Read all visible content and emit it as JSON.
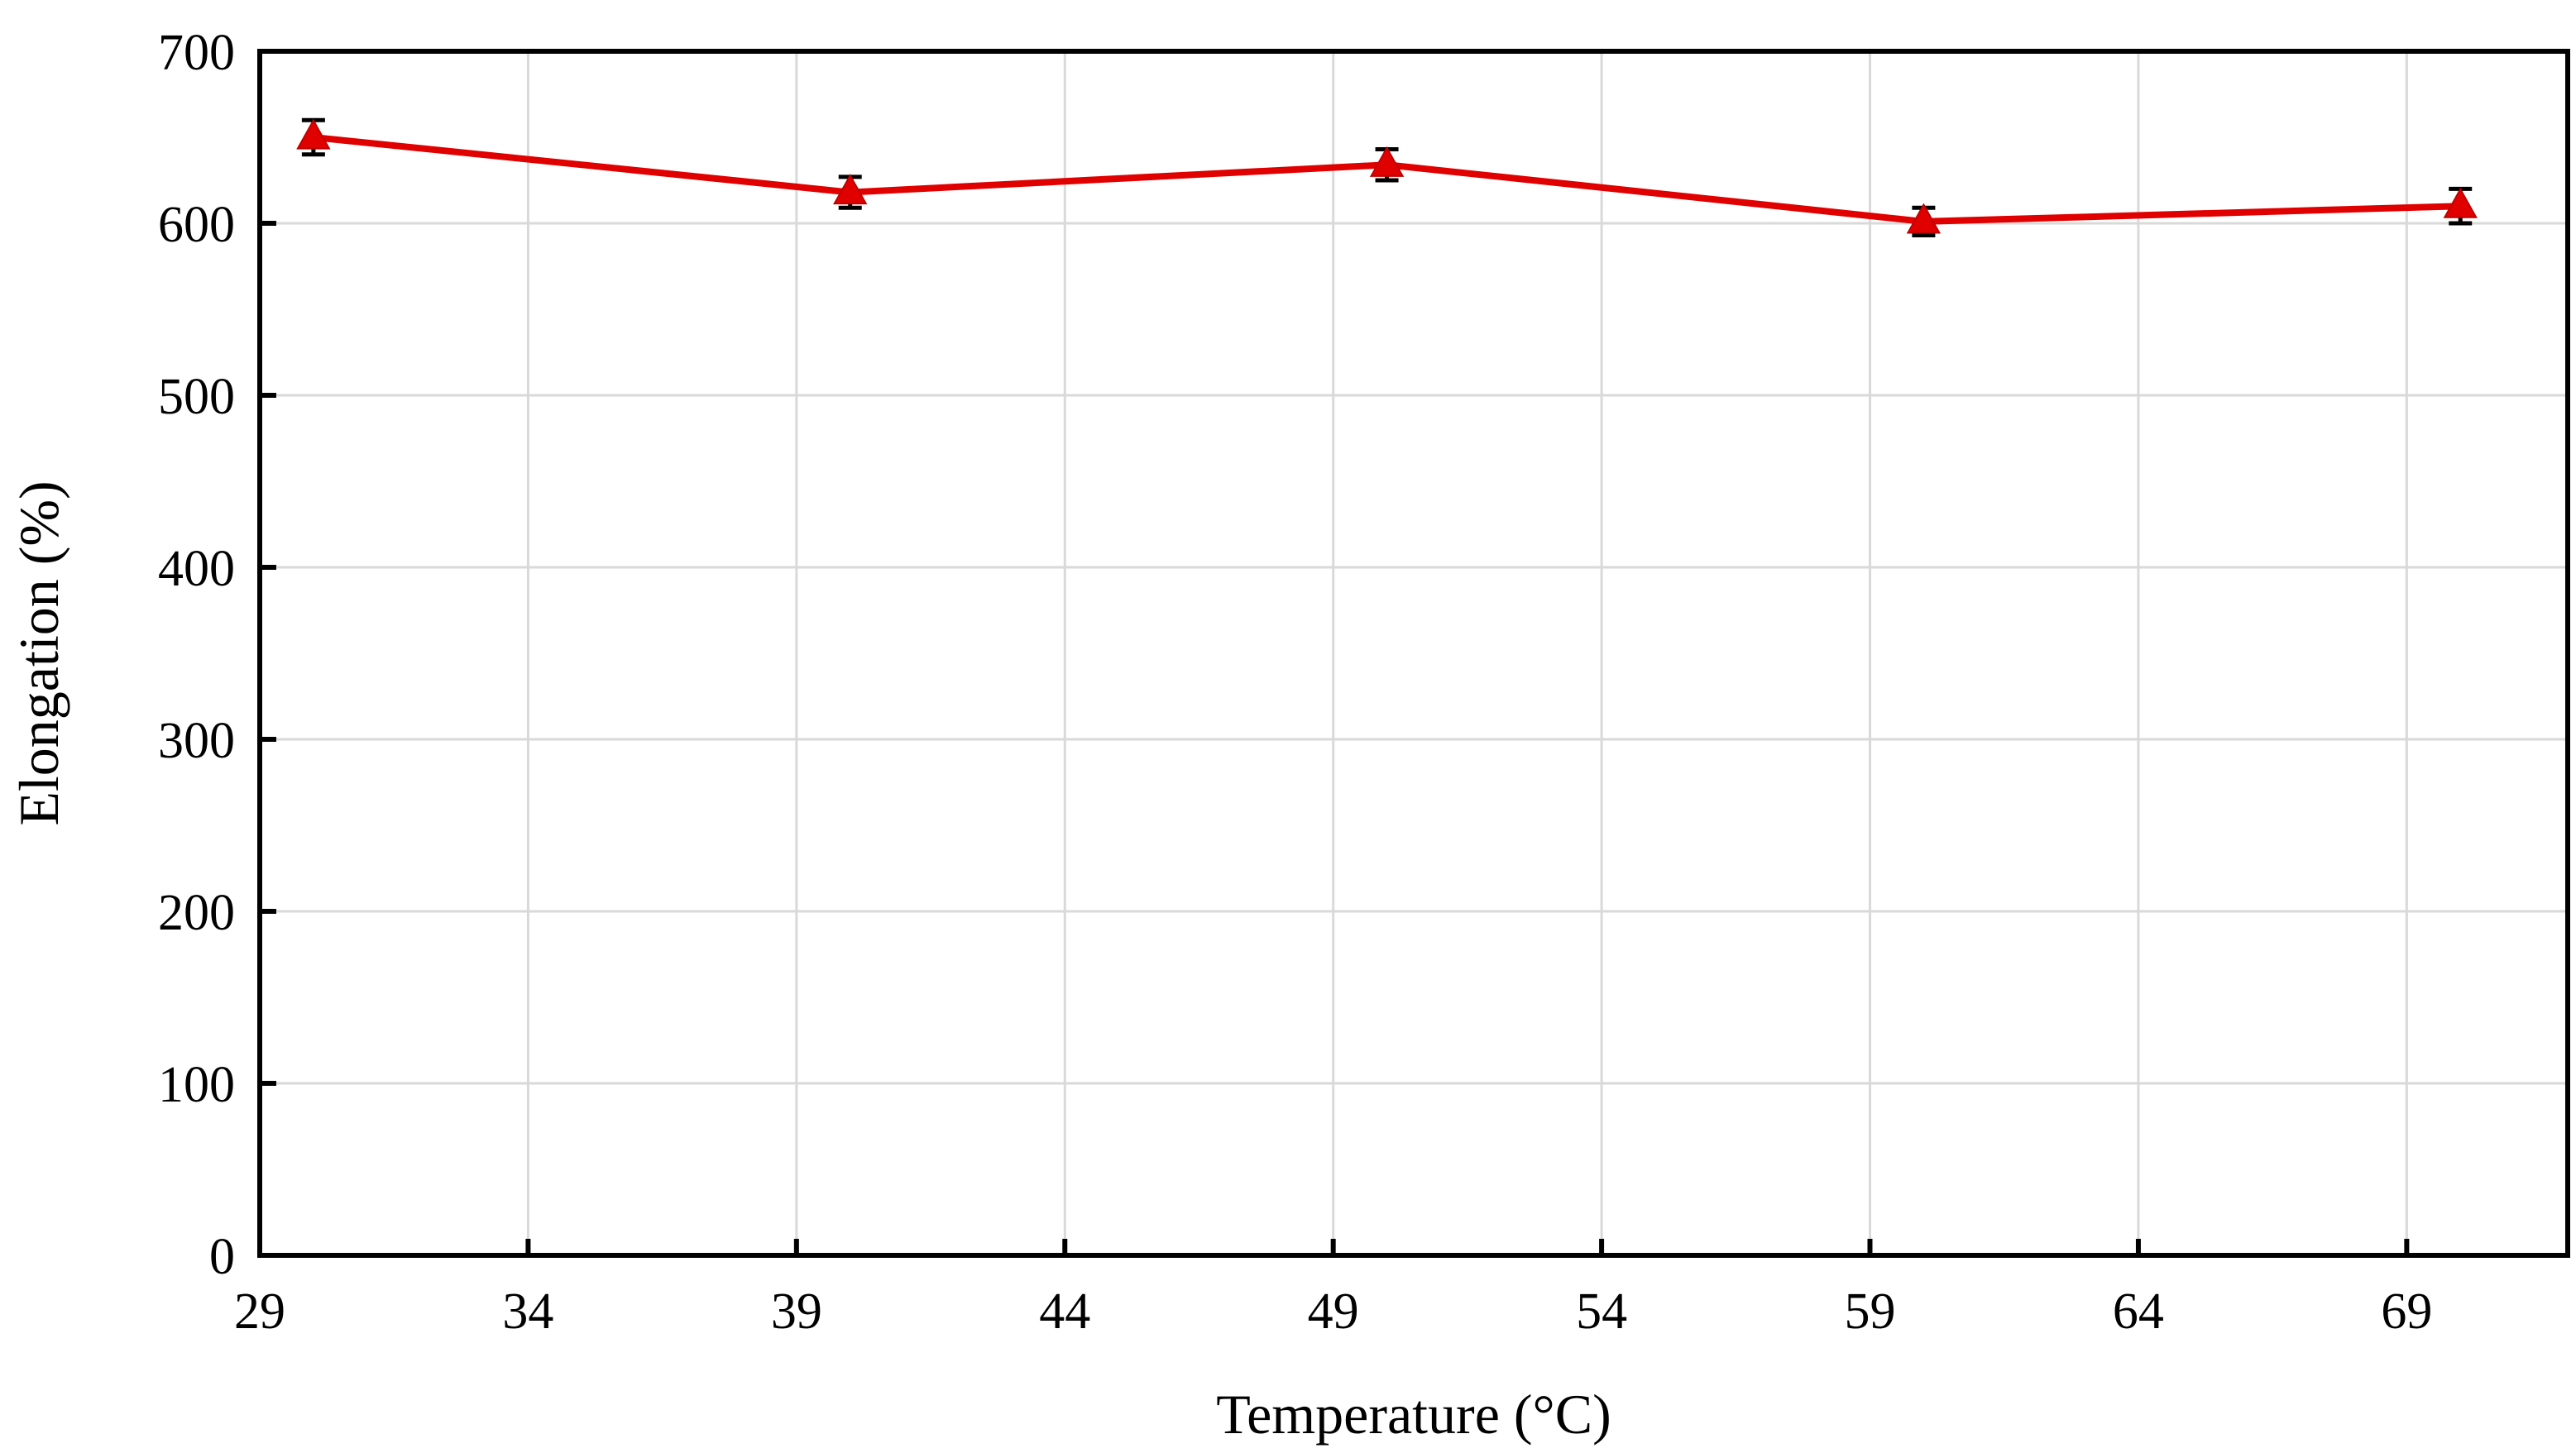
{
  "chart_data": {
    "type": "line",
    "xlabel": "Temperature (°C)",
    "ylabel": "Elongation (%)",
    "xlim": [
      29,
      72
    ],
    "ylim": [
      0,
      700
    ],
    "xticks": [
      29,
      34,
      39,
      44,
      49,
      54,
      59,
      64,
      69
    ],
    "yticks": [
      0,
      100,
      200,
      300,
      400,
      500,
      600,
      700
    ],
    "grid": true,
    "series": [
      {
        "x": [
          30,
          40,
          50,
          60,
          70
        ],
        "y": [
          650,
          618,
          634,
          601,
          610
        ],
        "error": [
          10,
          9,
          9,
          8,
          10
        ],
        "color": "#e00000",
        "marker": "triangle"
      }
    ]
  }
}
